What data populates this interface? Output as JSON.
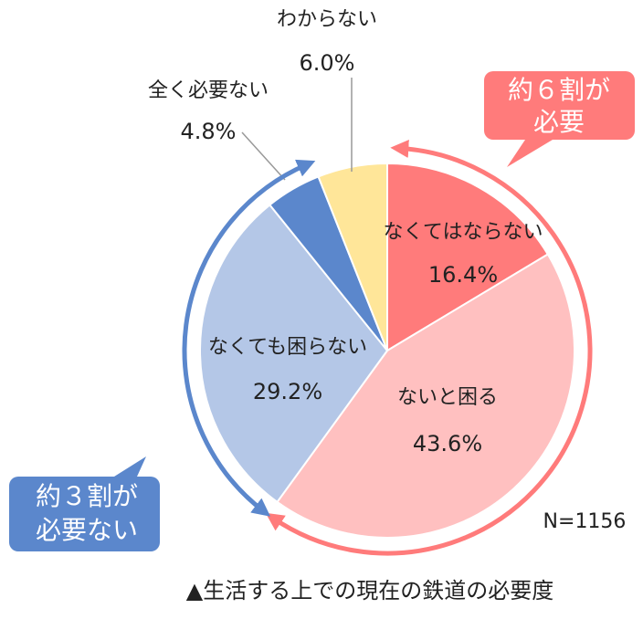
{
  "chart_data": {
    "type": "pie",
    "caption": "▲生活する上での現在の鉄道の必要度",
    "categories": [
      "なくてはならない",
      "ないと困る",
      "なくても困らない",
      "全く必要ない",
      "わからない"
    ],
    "values": [
      16.4,
      43.6,
      29.2,
      4.8,
      6.0
    ],
    "value_labels": [
      "16.4%",
      "43.6%",
      "29.2%",
      "4.8%",
      "6.0%"
    ],
    "colors": [
      "#FF7B7B",
      "#FFC0C0",
      "#B4C7E7",
      "#5B87CC",
      "#FFE699"
    ],
    "annotations": [
      {
        "lines": [
          "約６割が",
          "必要"
        ],
        "color": "#FF7B7B"
      },
      {
        "lines": [
          "約３割が",
          "必要ない"
        ],
        "color": "#5B87CC"
      },
      {
        "text": "N=1156"
      }
    ]
  }
}
